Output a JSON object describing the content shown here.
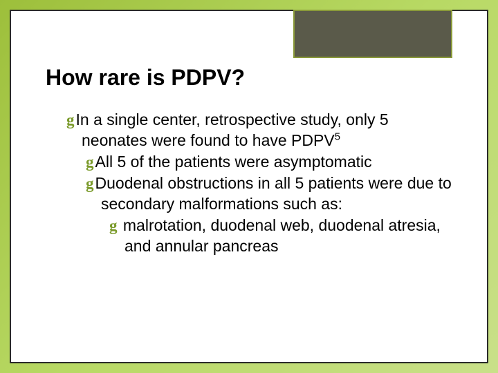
{
  "slide": {
    "title": "How rare is PDPV?",
    "bullets": {
      "b1_pre": "In a single center, retrospective study, only 5 neonates were found to have PDPV",
      "b1_sup": "5",
      "b2": "All 5 of the patients were asymptomatic",
      "b3": "Duodenal obstructions in all 5 patients were due to secondary malformations such as:",
      "b4": " malrotation, duodenal web, duodenal atresia, and annular pancreas"
    }
  },
  "style": {
    "bullet_glyph": "g",
    "bullet_color": "#7a9a2a",
    "bg_gradient_from": "#9dbf3b",
    "bg_gradient_to": "#c9e089",
    "corner_fill": "#5a5a4a",
    "corner_border": "#8a9a3a",
    "title_fontsize": 32,
    "body_fontsize": 23
  }
}
